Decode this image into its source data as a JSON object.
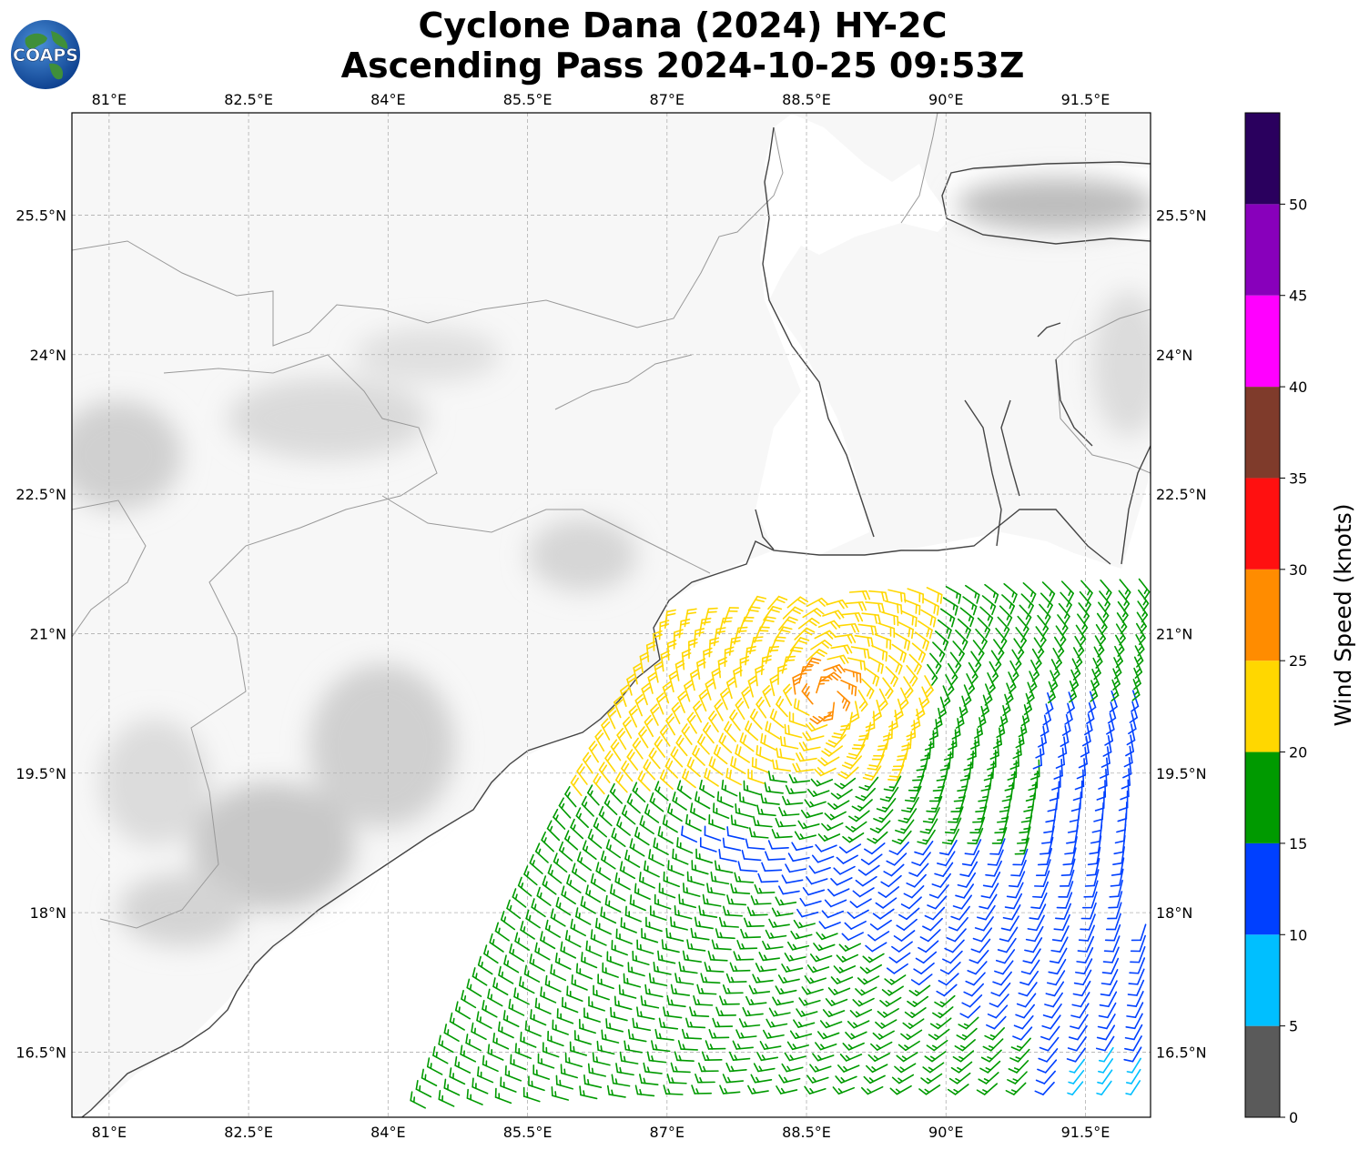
{
  "title": {
    "line1": "Cyclone Dana (2024) HY-2C",
    "line2": "Ascending Pass 2024-10-25 09:53Z"
  },
  "logo": {
    "text": "COAPS",
    "icon": "globe-logo-icon"
  },
  "map": {
    "lon_range": [
      80.6,
      92.2
    ],
    "lat_range": [
      15.8,
      26.6
    ],
    "lon_ticks": [
      "81°E",
      "82.5°E",
      "84°E",
      "85.5°E",
      "87°E",
      "88.5°E",
      "90°E",
      "91.5°E"
    ],
    "lat_ticks": [
      "25.5°N",
      "24°N",
      "22.5°N",
      "21°N",
      "19.5°N",
      "18°N",
      "16.5°N"
    ],
    "lon_tick_values": [
      81,
      82.5,
      84,
      85.5,
      87,
      88.5,
      90,
      91.5
    ],
    "lat_tick_values": [
      25.5,
      24,
      22.5,
      21,
      19.5,
      18,
      16.5
    ],
    "grid": true,
    "gridline_color": "#b0b0b0",
    "coastline_color": "#444444",
    "border_color": "#999999"
  },
  "colorbar": {
    "title": "Wind Speed (knots)",
    "ticks": [
      "0",
      "5",
      "10",
      "15",
      "20",
      "25",
      "30",
      "35",
      "40",
      "45",
      "50"
    ],
    "bins": [
      {
        "min": 0,
        "max": 5,
        "color": "#5a5a5a"
      },
      {
        "min": 5,
        "max": 10,
        "color": "#00bfff"
      },
      {
        "min": 10,
        "max": 15,
        "color": "#0040ff"
      },
      {
        "min": 15,
        "max": 20,
        "color": "#009a00"
      },
      {
        "min": 20,
        "max": 25,
        "color": "#ffd700"
      },
      {
        "min": 25,
        "max": 30,
        "color": "#ff8c00"
      },
      {
        "min": 30,
        "max": 35,
        "color": "#ff1010"
      },
      {
        "min": 35,
        "max": 40,
        "color": "#7f3b2b"
      },
      {
        "min": 40,
        "max": 45,
        "color": "#ff00ff"
      },
      {
        "min": 45,
        "max": 50,
        "color": "#8800bb"
      },
      {
        "min": 50,
        "max": 55,
        "color": "#2a005e"
      }
    ]
  },
  "wind_zones": [
    {
      "name": "inner-fast-zone",
      "lon_center": 88.7,
      "lat_center": 20.4,
      "speed_knots": 26
    },
    {
      "name": "yellow-north-band",
      "lon_center": 87.6,
      "lat_center": 20.5,
      "speed_knots": 22
    },
    {
      "name": "green-central-band",
      "lon_center": 87.0,
      "lat_center": 18.0,
      "speed_knots": 17
    },
    {
      "name": "blue-southeast-band",
      "lon_center": 90.8,
      "lat_center": 17.2,
      "speed_knots": 12
    },
    {
      "name": "cyan-corner",
      "lon_center": 91.8,
      "lat_center": 16.0,
      "speed_knots": 8
    }
  ]
}
